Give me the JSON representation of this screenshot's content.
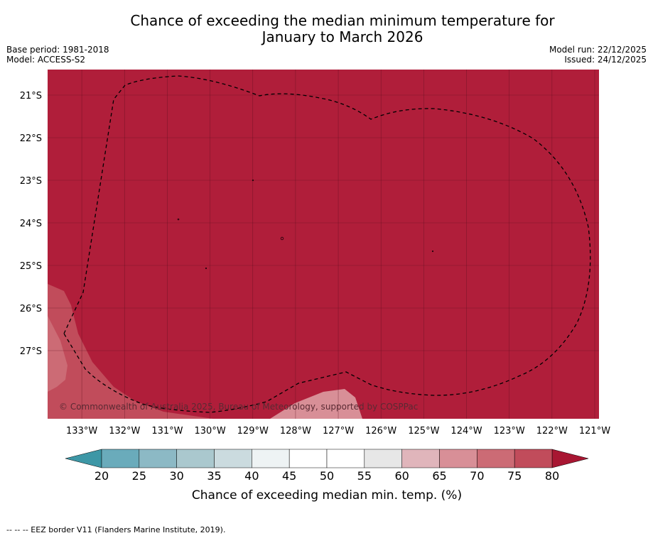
{
  "title": {
    "line1": "Chance of exceeding the median minimum temperature for",
    "line2": "January to March 2026"
  },
  "meta_left": {
    "base_period": "Base period: 1981-2018",
    "model": "Model: ACCESS-S2"
  },
  "meta_right": {
    "model_run": "Model run: 22/12/2025",
    "issued": "Issued: 24/12/2025"
  },
  "map": {
    "lat_labels": [
      "21°S",
      "22°S",
      "23°S",
      "24°S",
      "25°S",
      "26°S",
      "27°S"
    ],
    "lon_labels": [
      "133°W",
      "132°W",
      "131°W",
      "130°W",
      "129°W",
      "128°W",
      "127°W",
      "126°W",
      "125°W",
      "124°W",
      "123°W",
      "122°W",
      "121°W"
    ],
    "lon_range": [
      -133.8,
      -120.9
    ],
    "lat_range": [
      -20.4,
      -28.6
    ],
    "copyright": "© Commonwealth of Australia 2025, Bureau of Meteorology, supported by COSPPac",
    "dominant_category": "80+",
    "colors": {
      "c80": "#b01e3a",
      "c75": "#c14c5b",
      "c70": "#cc6b75",
      "c65": "#d88f97",
      "grid": "#5a0f1e"
    }
  },
  "colorbar": {
    "ticks": [
      "20",
      "25",
      "30",
      "35",
      "40",
      "45",
      "50",
      "55",
      "60",
      "65",
      "70",
      "75",
      "80"
    ],
    "colors": [
      "#6aabbb",
      "#8cb9c5",
      "#aac8ce",
      "#cbdbdf",
      "#eef3f4",
      "#ffffff",
      "#ffffff",
      "#e7e7e7",
      "#e0b5bb",
      "#d88f97",
      "#cc6b75",
      "#c14c5b"
    ],
    "under_color": "#3d97a6",
    "over_color": "#a81632",
    "label": "Chance of exceeding median min. temp. (%)"
  },
  "footer": {
    "eez_legend": "-- -- -- EEZ border V11 (Flanders Marine Institute, 2019)."
  }
}
